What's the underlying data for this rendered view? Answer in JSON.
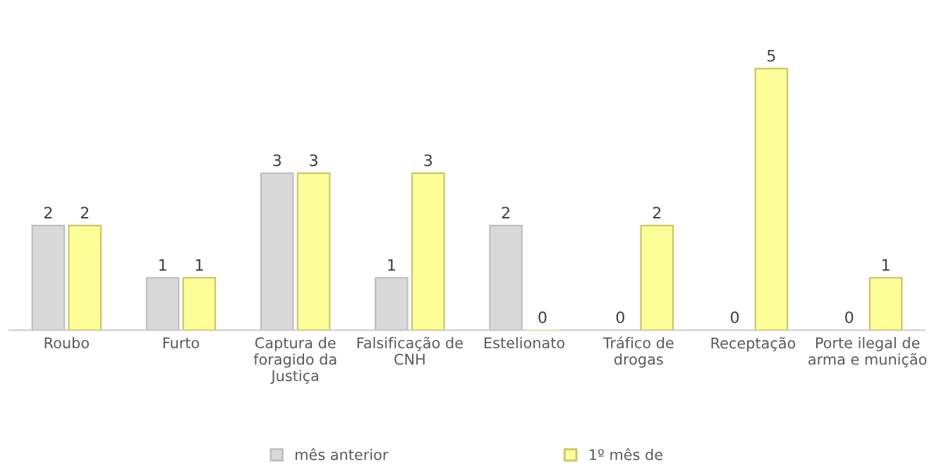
{
  "chart_data": {
    "type": "bar",
    "categories": [
      "Roubo",
      "Furto",
      "Captura de\nforagido da\nJustiça",
      "Falsificação de\nCNH",
      "Estelionato",
      "Tráfico de\ndrogas",
      "Receptação",
      "Porte ilegal de\narma e munição"
    ],
    "series": [
      {
        "name": "mês anterior",
        "color": "#d9d9d9",
        "values": [
          2,
          1,
          3,
          1,
          2,
          0,
          0,
          0
        ]
      },
      {
        "name": "1º mês de",
        "color": "#ffff99",
        "values": [
          2,
          1,
          3,
          3,
          0,
          2,
          5,
          1
        ]
      }
    ],
    "data_labels": true,
    "legend": "bottom",
    "grid": false
  }
}
